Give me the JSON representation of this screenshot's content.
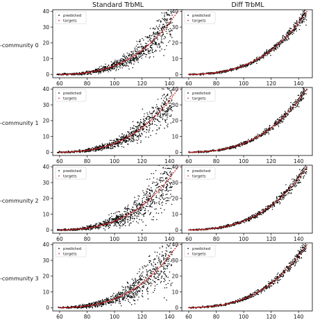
{
  "figure": {
    "columns": [
      "Standard TrbML",
      "Diff TrbML"
    ],
    "rows": [
      "-community 0",
      "-community 1",
      "-community 2",
      "-community 3"
    ],
    "legend": [
      "predicted",
      "targets"
    ],
    "colors": {
      "predicted": "#000000",
      "targets": "#d62728"
    }
  },
  "chart_data": [
    {
      "type": "scatter",
      "row": 0,
      "col": 0,
      "xlim": [
        55,
        150
      ],
      "ylim": [
        -2,
        41
      ],
      "xticks": [
        "60",
        "80",
        "100",
        "120",
        "140"
      ],
      "yticks": [
        "0",
        "10",
        "20",
        "30",
        "40"
      ],
      "legend": [
        "predicted",
        "targets"
      ],
      "legend_loc": "upper left",
      "grid": false,
      "series": [
        {
          "name": "targets",
          "x_range": [
            60,
            146
          ],
          "model": "y = 4.5e-5*(x-50)^3",
          "x": [
            60,
            80,
            100,
            120,
            140
          ],
          "y": [
            0.05,
            1.2,
            5.6,
            15.4,
            32.8
          ]
        },
        {
          "name": "predicted",
          "x_range": [
            58,
            142
          ],
          "spread": "wide"
        }
      ]
    },
    {
      "type": "scatter",
      "row": 0,
      "col": 1,
      "xlim": [
        55,
        150
      ],
      "ylim": [
        -2,
        41
      ],
      "xticks": [
        "60",
        "80",
        "100",
        "120",
        "140"
      ],
      "yticks": [
        "0",
        "10",
        "20",
        "30",
        "40"
      ],
      "legend": [
        "predicted",
        "targets"
      ],
      "legend_loc": "upper left",
      "grid": false,
      "series": [
        {
          "name": "targets",
          "x_range": [
            60,
            146
          ],
          "x": [
            60,
            80,
            100,
            120,
            140
          ],
          "y": [
            0.05,
            1.2,
            5.6,
            15.4,
            32.8
          ]
        },
        {
          "name": "predicted",
          "x_range": [
            60,
            146
          ],
          "spread": "tight"
        }
      ]
    },
    {
      "type": "scatter",
      "row": 1,
      "col": 0,
      "xlim": [
        55,
        150
      ],
      "ylim": [
        -2,
        41
      ],
      "xticks": [
        "60",
        "80",
        "100",
        "120",
        "140"
      ],
      "yticks": [
        "0",
        "10",
        "20",
        "30",
        "40"
      ],
      "legend": [
        "predicted",
        "targets"
      ],
      "legend_loc": "upper left",
      "grid": false,
      "series": [
        {
          "name": "targets",
          "x_range": [
            60,
            146
          ],
          "x": [
            60,
            80,
            100,
            120,
            140
          ],
          "y": [
            0.05,
            1.2,
            5.6,
            15.4,
            32.8
          ]
        },
        {
          "name": "predicted",
          "x_range": [
            58,
            142
          ],
          "spread": "wide"
        }
      ]
    },
    {
      "type": "scatter",
      "row": 1,
      "col": 1,
      "xlim": [
        55,
        150
      ],
      "ylim": [
        -2,
        41
      ],
      "xticks": [
        "60",
        "80",
        "100",
        "120",
        "140"
      ],
      "yticks": [
        "0",
        "10",
        "20",
        "30",
        "40"
      ],
      "legend": [
        "predicted",
        "targets"
      ],
      "legend_loc": "upper left",
      "grid": false,
      "series": [
        {
          "name": "targets",
          "x_range": [
            60,
            146
          ],
          "x": [
            60,
            80,
            100,
            120,
            140
          ],
          "y": [
            0.05,
            1.2,
            5.6,
            15.4,
            32.8
          ]
        },
        {
          "name": "predicted",
          "x_range": [
            60,
            146
          ],
          "spread": "tight"
        }
      ]
    },
    {
      "type": "scatter",
      "row": 2,
      "col": 0,
      "xlim": [
        55,
        150
      ],
      "ylim": [
        -2,
        41
      ],
      "xticks": [
        "60",
        "80",
        "100",
        "120",
        "140"
      ],
      "yticks": [
        "0",
        "10",
        "20",
        "30",
        "40"
      ],
      "legend": [
        "predicted",
        "targets"
      ],
      "legend_loc": "upper left",
      "grid": false,
      "series": [
        {
          "name": "targets",
          "x_range": [
            60,
            146
          ],
          "x": [
            60,
            80,
            100,
            120,
            140
          ],
          "y": [
            0.05,
            1.2,
            5.6,
            15.4,
            32.8
          ]
        },
        {
          "name": "predicted",
          "x_range": [
            58,
            142
          ],
          "spread": "very wide"
        }
      ]
    },
    {
      "type": "scatter",
      "row": 2,
      "col": 1,
      "xlim": [
        55,
        150
      ],
      "ylim": [
        -2,
        41
      ],
      "xticks": [
        "60",
        "80",
        "100",
        "120",
        "140"
      ],
      "yticks": [
        "0",
        "10",
        "20",
        "30",
        "40"
      ],
      "legend": [
        "predicted",
        "targets"
      ],
      "legend_loc": "upper left",
      "grid": false,
      "series": [
        {
          "name": "targets",
          "x_range": [
            60,
            146
          ],
          "x": [
            60,
            80,
            100,
            120,
            140
          ],
          "y": [
            0.05,
            1.2,
            5.6,
            15.4,
            32.8
          ]
        },
        {
          "name": "predicted",
          "x_range": [
            60,
            146
          ],
          "spread": "tight"
        }
      ]
    },
    {
      "type": "scatter",
      "row": 3,
      "col": 0,
      "xlim": [
        55,
        150
      ],
      "ylim": [
        -2,
        41
      ],
      "xticks": [
        "60",
        "80",
        "100",
        "120",
        "140"
      ],
      "yticks": [
        "0",
        "10",
        "20",
        "30",
        "40"
      ],
      "legend": [
        "predicted",
        "targets"
      ],
      "legend_loc": "upper left",
      "grid": false,
      "series": [
        {
          "name": "targets",
          "x_range": [
            60,
            146
          ],
          "x": [
            60,
            80,
            100,
            120,
            140
          ],
          "y": [
            0.05,
            1.2,
            5.6,
            15.4,
            32.8
          ]
        },
        {
          "name": "predicted",
          "x_range": [
            58,
            142
          ],
          "spread": "very wide"
        }
      ]
    },
    {
      "type": "scatter",
      "row": 3,
      "col": 1,
      "xlim": [
        55,
        150
      ],
      "ylim": [
        -2,
        41
      ],
      "xticks": [
        "60",
        "80",
        "100",
        "120",
        "140"
      ],
      "yticks": [
        "0",
        "10",
        "20",
        "30",
        "40"
      ],
      "legend": [
        "predicted",
        "targets"
      ],
      "legend_loc": "upper left",
      "grid": false,
      "series": [
        {
          "name": "targets",
          "x_range": [
            60,
            146
          ],
          "x": [
            60,
            80,
            100,
            120,
            140
          ],
          "y": [
            0.05,
            1.2,
            5.6,
            15.4,
            32.8
          ]
        },
        {
          "name": "predicted",
          "x_range": [
            60,
            146
          ],
          "spread": "tight"
        }
      ]
    }
  ]
}
